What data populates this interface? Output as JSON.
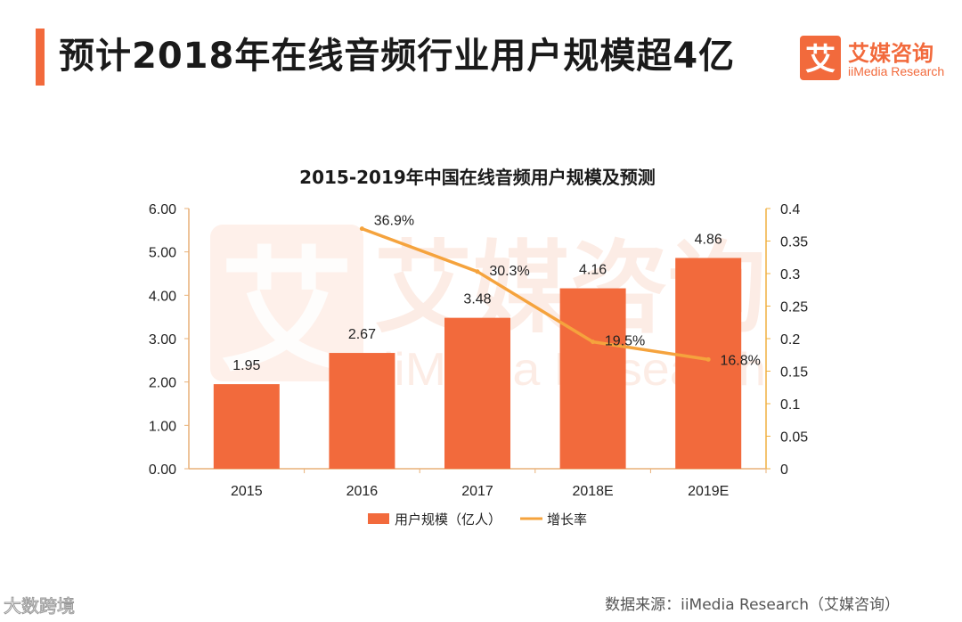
{
  "header": {
    "title": "预计2018年在线音频行业用户规模超4亿",
    "accent_color": "#f26a3c"
  },
  "brand": {
    "name_cn": "艾媒咨询",
    "name_en": "iiMedia Research",
    "logo_char": "艾",
    "color": "#f26a3c"
  },
  "chart_data": {
    "type": "bar",
    "title": "2015-2019年中国在线音频用户规模及预测",
    "categories": [
      "2015",
      "2016",
      "2017",
      "2018E",
      "2019E"
    ],
    "series": [
      {
        "name": "用户规模（亿人）",
        "type": "bar",
        "axis": "left",
        "color": "#f26a3c",
        "values": [
          1.95,
          2.67,
          3.48,
          4.16,
          4.86
        ],
        "labels": [
          "1.95",
          "2.67",
          "3.48",
          "4.16",
          "4.86"
        ]
      },
      {
        "name": "增长率",
        "type": "line",
        "axis": "right",
        "color": "#f5a33d",
        "values": [
          null,
          0.369,
          0.303,
          0.195,
          0.168
        ],
        "labels": [
          "",
          "36.9%",
          "30.3%",
          "19.5%",
          "16.8%"
        ]
      }
    ],
    "y_left": {
      "lim": [
        0,
        6
      ],
      "ticks": [
        "0.00",
        "1.00",
        "2.00",
        "3.00",
        "4.00",
        "5.00",
        "6.00"
      ]
    },
    "y_right": {
      "lim": [
        0,
        0.4
      ],
      "ticks": [
        "0",
        "0.05",
        "0.1",
        "0.15",
        "0.2",
        "0.25",
        "0.3",
        "0.35",
        "0.4"
      ]
    },
    "legend": {
      "position": "bottom"
    },
    "grid": false
  },
  "watermark": {
    "cn": "艾媒咨询",
    "en": "iiMedia Research",
    "char": "艾"
  },
  "footer": {
    "source": "数据来源：iiMedia Research（艾媒咨询）",
    "corner_watermark": "大数跨境"
  }
}
